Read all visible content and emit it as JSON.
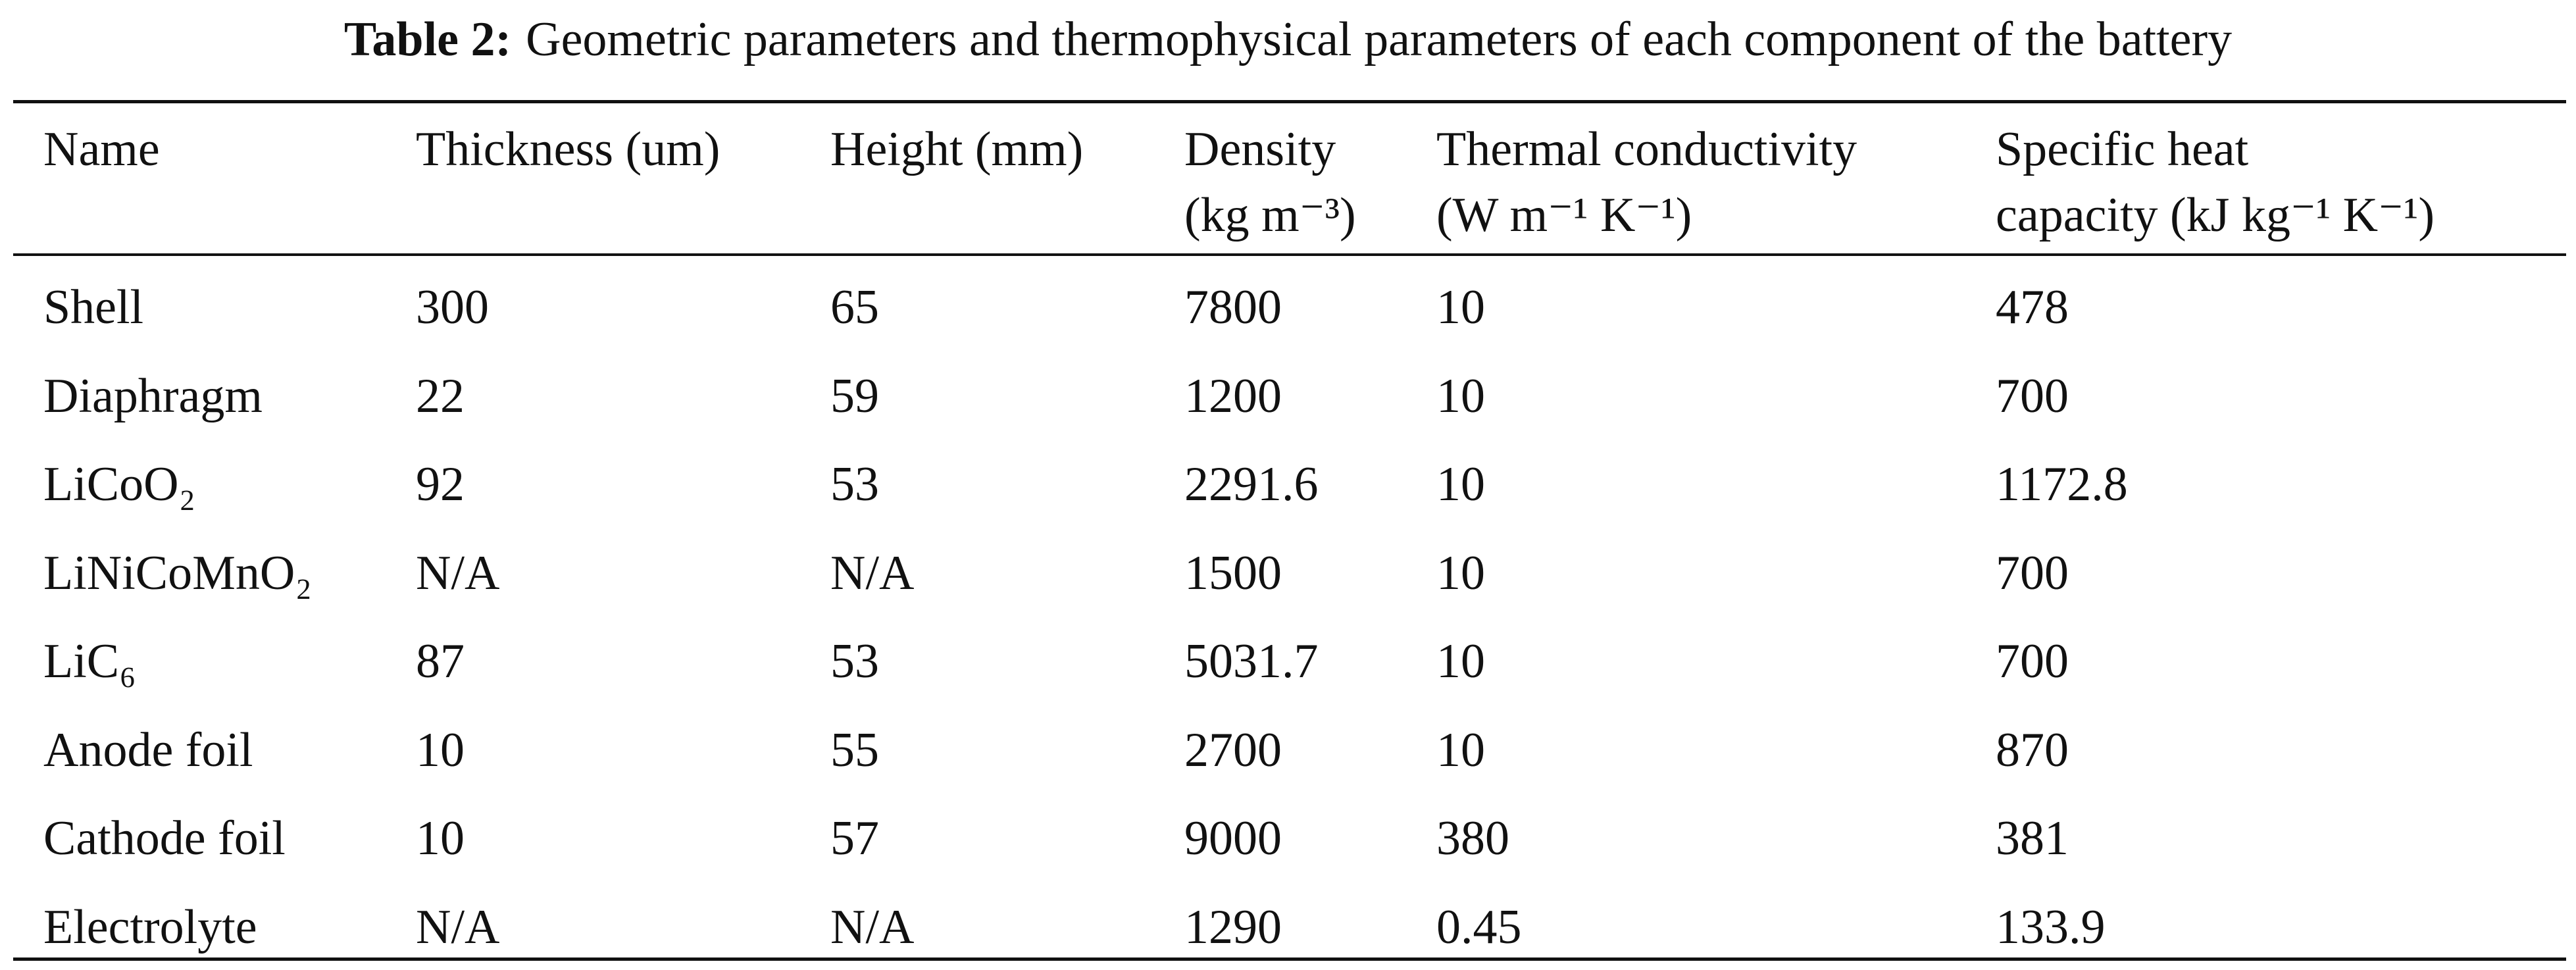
{
  "table": {
    "label": "Table 2:",
    "title": "Geometric parameters and thermophysical parameters of each component of the battery",
    "header": [
      [
        "Name"
      ],
      [
        "Thickness (um)"
      ],
      [
        "Height (mm)"
      ],
      [
        "Density",
        "(kg m⁻³)"
      ],
      [
        "Thermal conductivity",
        "(W m⁻¹ K⁻¹)"
      ],
      [
        "Specific heat",
        "capacity (kJ kg⁻¹ K⁻¹)"
      ]
    ],
    "rows": [
      [
        "Shell",
        "300",
        "65",
        "7800",
        "10",
        "478"
      ],
      [
        "Diaphragm",
        "22",
        "59",
        "1200",
        "10",
        "700"
      ],
      [
        "LiCoO₂",
        "92",
        "53",
        "2291.6",
        "10",
        "1172.8"
      ],
      [
        "LiNiCoMnO₂",
        "N/A",
        "N/A",
        "1500",
        "10",
        "700"
      ],
      [
        "LiC₆",
        "87",
        "53",
        "5031.7",
        "10",
        "700"
      ],
      [
        "Anode foil",
        "10",
        "55",
        "2700",
        "10",
        "870"
      ],
      [
        "Cathode foil",
        "10",
        "57",
        "9000",
        "380",
        "381"
      ],
      [
        "Electrolyte",
        "N/A",
        "N/A",
        "1290",
        "0.45",
        "133.9"
      ]
    ]
  }
}
